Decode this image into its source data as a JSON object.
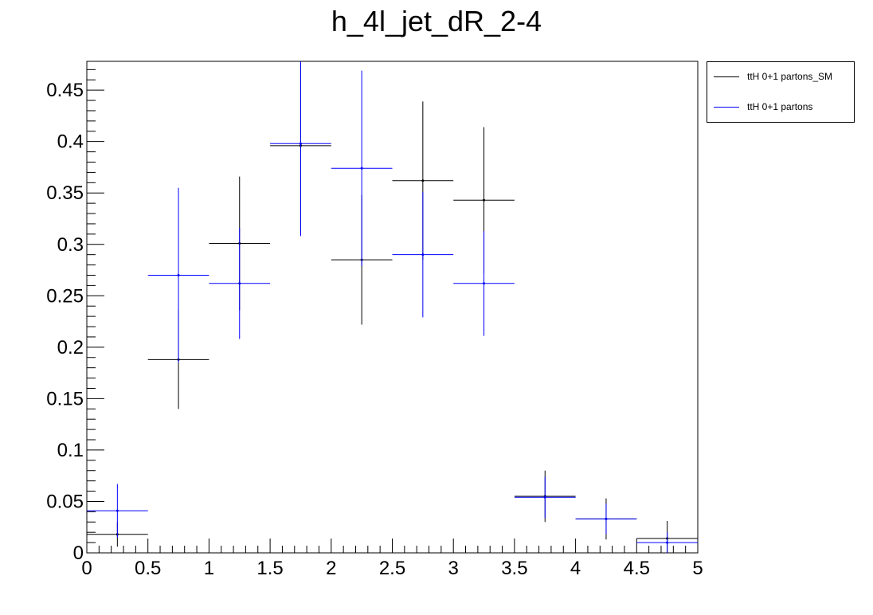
{
  "chart_data": {
    "type": "scatter",
    "title": "h_4l_jet_dR_2-4",
    "xlabel": "",
    "ylabel": "",
    "xlim": [
      0,
      5
    ],
    "ylim": [
      0,
      0.478
    ],
    "x_ticks": [
      0,
      0.5,
      1,
      1.5,
      2,
      2.5,
      3,
      3.5,
      4,
      4.5,
      5
    ],
    "x_tick_labels": [
      "0",
      "0.5",
      "1",
      "1.5",
      "2",
      "2.5",
      "3",
      "3.5",
      "4",
      "4.5",
      "5"
    ],
    "y_ticks": [
      0,
      0.05,
      0.1,
      0.15,
      0.2,
      0.25,
      0.3,
      0.35,
      0.4,
      0.45
    ],
    "y_tick_labels": [
      "0",
      "0.05",
      "0.1",
      "0.15",
      "0.2",
      "0.25",
      "0.3",
      "0.35",
      "0.4",
      "0.45"
    ],
    "bin_edges": [
      0,
      0.5,
      1,
      1.5,
      2,
      2.5,
      3,
      3.5,
      4,
      4.5,
      5
    ],
    "legend_position": "top-right, outside plot",
    "series": [
      {
        "name": "ttH 0+1 partons_SM",
        "color": "#000000",
        "values": [
          0.018,
          0.188,
          0.301,
          0.396,
          0.285,
          0.362,
          0.343,
          0.055,
          0.033,
          0.014
        ],
        "errors": [
          0.012,
          0.048,
          0.065,
          0.087,
          0.063,
          0.077,
          0.071,
          0.025,
          0.02,
          0.017
        ]
      },
      {
        "name": "ttH 0+1 partons",
        "color": "#0000ff",
        "values": [
          0.041,
          0.27,
          0.262,
          0.398,
          0.374,
          0.29,
          0.262,
          0.054,
          0.033,
          0.01
        ],
        "errors": [
          0.026,
          0.085,
          0.054,
          0.09,
          0.095,
          0.061,
          0.051,
          0.02,
          0.015,
          0.01
        ]
      }
    ]
  }
}
